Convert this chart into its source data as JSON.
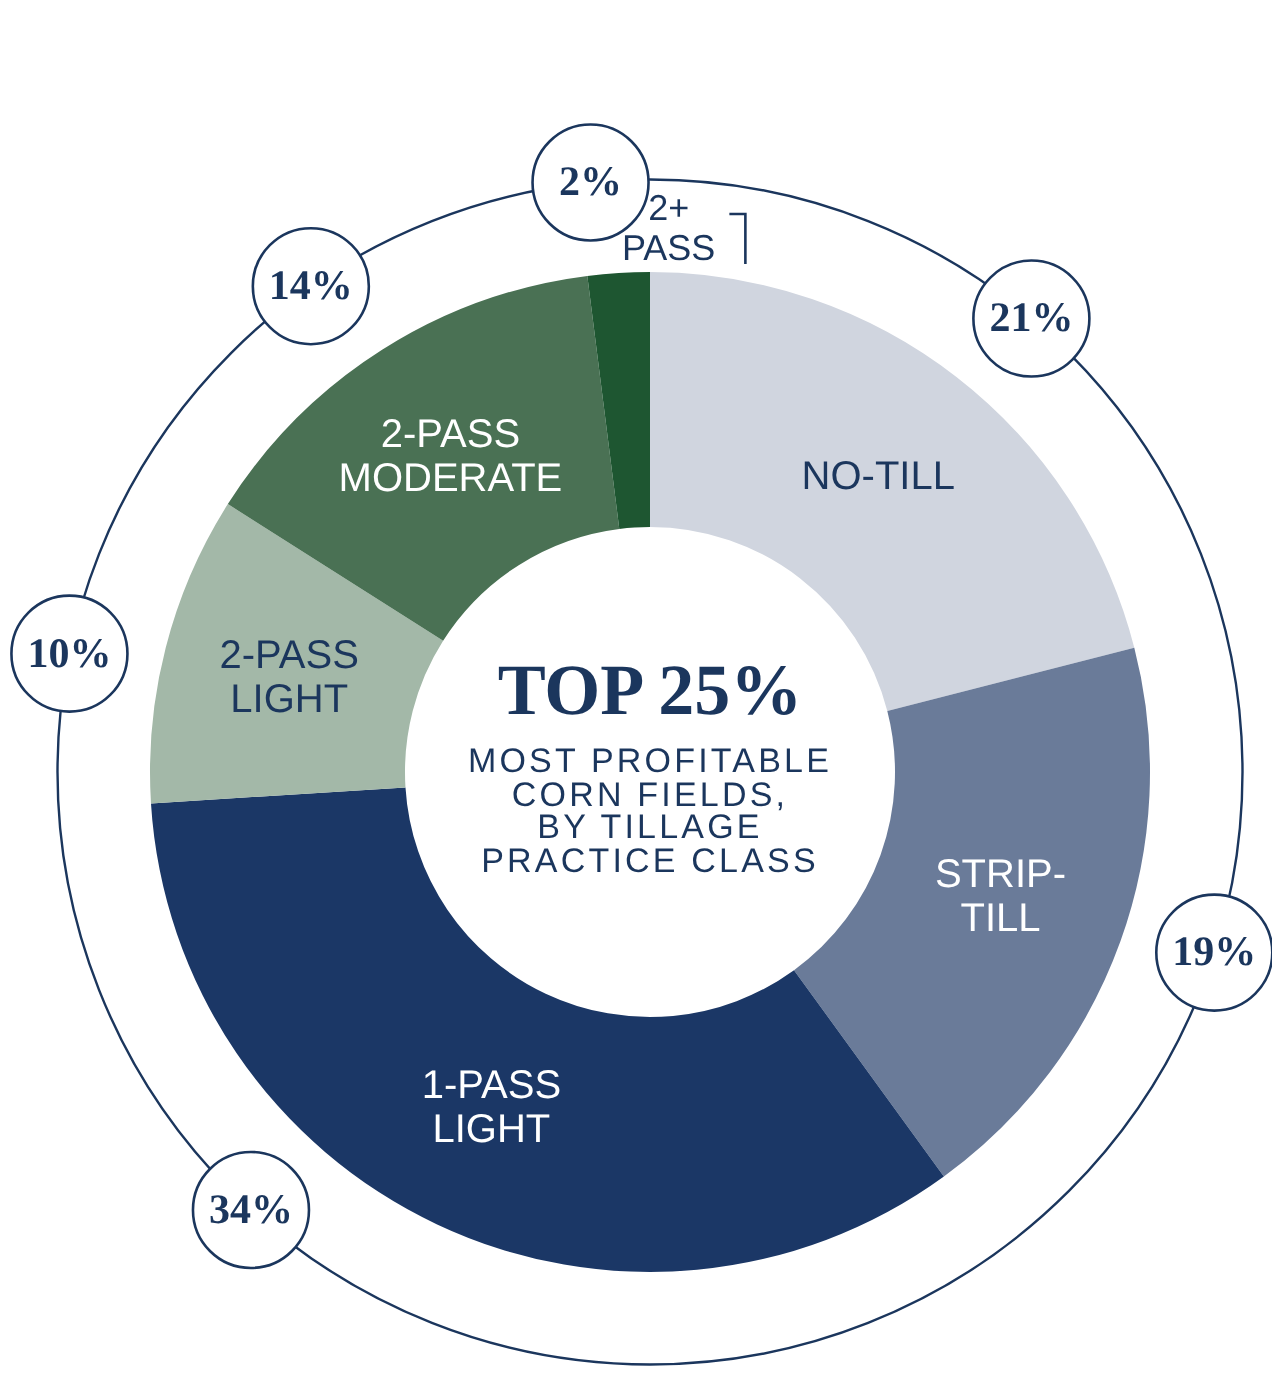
{
  "chart_data": {
    "type": "donut",
    "title": "TOP 25%",
    "subtitle": "MOST PROFITABLE\nCORN FIELDS,\nBY TILLAGE\nPRACTICE CLASS",
    "categories": [
      "NO-TILL",
      "STRIP-TILL",
      "1-PASS LIGHT",
      "2-PASS LIGHT",
      "2-PASS MODERATE",
      "2+ PASS"
    ],
    "values": [
      21,
      19,
      34,
      10,
      14,
      2
    ],
    "colors": [
      "#d0d5df",
      "#6a7b99",
      "#1b3766",
      "#a3b8a8",
      "#4a7154",
      "#1e5631"
    ],
    "value_labels": [
      "21%",
      "19%",
      "34%",
      "10%",
      "14%",
      "2%"
    ]
  }
}
